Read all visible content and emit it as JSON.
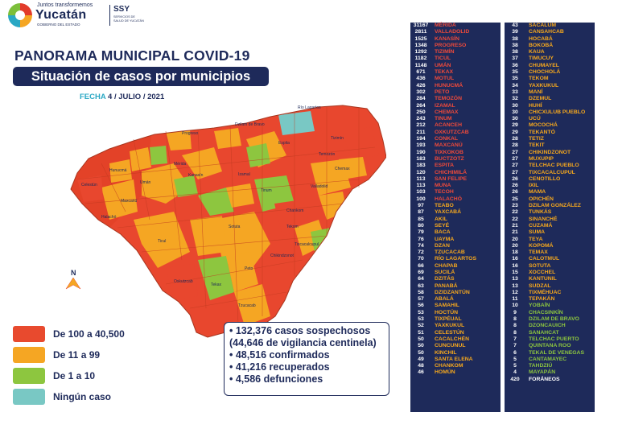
{
  "header": {
    "logo_top": "Juntos transformemos",
    "logo_name": "Yucatán",
    "logo_bottom": "GOBIERNO DEL ESTADO",
    "ssy": "SSY",
    "ssy_sub": "SERVICIOS DE SALUD DE YUCATÁN"
  },
  "title": "PANORAMA MUNICIPAL COVID-19",
  "subtitle": "Situación de casos por municipios",
  "date_label": "FECHA",
  "date_value": "4 / JULIO / 2021",
  "map_labels": {
    "rio_lagartos": "Río Lagartos",
    "dzilam_bravo": "Dzilam de Bravo",
    "progreso": "Progreso",
    "tizimin": "Tizimín",
    "merida": "Mérida",
    "valladolid": "Valladolid",
    "tekax": "Tekax",
    "ticul": "Ticul",
    "peto": "Peto",
    "tzucacab": "Tzucacab",
    "oxkutzcab": "Oxkutzcab",
    "chemax": "Chemax",
    "espita": "Espita",
    "celestun": "Celestún",
    "halachó": "Halachó",
    "maxcanu": "Maxcanú",
    "tinum": "Tinum",
    "sotuta": "Sotuta",
    "tekom": "Tekom",
    "tixcacalcupul": "Tixcacalcupul",
    "chikindzonot": "Chikindzonot",
    "hunucma": "Hunucmá",
    "uman": "Umán",
    "izamal": "Izamal",
    "temozon": "Temozón",
    "kanasin": "Kanasín",
    "chankom": "Chankom"
  },
  "north_label": "N",
  "legend": [
    {
      "label": "De 100 a 40,500",
      "color": "#e84a2e"
    },
    {
      "label": "De 11 a 99",
      "color": "#f5a623"
    },
    {
      "label": "De 1 a 10",
      "color": "#8dc63f"
    },
    {
      "label": "Ningún caso",
      "color": "#79c8c4"
    }
  ],
  "stats": [
    "• 132,376 casos sospechosos",
    "(44,646 de vigilancia centinela)",
    "• 48,516 confirmados",
    "• 41,216 recuperados",
    "• 4,586 defunciones"
  ],
  "table_left": [
    {
      "n": "31167",
      "m": "MÉRIDA",
      "c": "red"
    },
    {
      "n": "2811",
      "m": "VALLADOLID",
      "c": "red"
    },
    {
      "n": "1525",
      "m": "KANASÍN",
      "c": "red"
    },
    {
      "n": "1348",
      "m": "PROGRESO",
      "c": "red"
    },
    {
      "n": "1292",
      "m": "TIZIMÍN",
      "c": "red"
    },
    {
      "n": "1182",
      "m": "TICUL",
      "c": "red"
    },
    {
      "n": "1148",
      "m": "UMÁN",
      "c": "red"
    },
    {
      "n": "671",
      "m": "TEKAX",
      "c": "red"
    },
    {
      "n": "436",
      "m": "MOTUL",
      "c": "red"
    },
    {
      "n": "426",
      "m": "HUNUCMÁ",
      "c": "red"
    },
    {
      "n": "302",
      "m": "PETO",
      "c": "red"
    },
    {
      "n": "284",
      "m": "TEMOZÓN",
      "c": "red"
    },
    {
      "n": "264",
      "m": "IZAMAL",
      "c": "red"
    },
    {
      "n": "250",
      "m": "CHEMAX",
      "c": "red"
    },
    {
      "n": "243",
      "m": "TINUM",
      "c": "red"
    },
    {
      "n": "212",
      "m": "ACANCEH",
      "c": "red"
    },
    {
      "n": "211",
      "m": "OXKUTZCAB",
      "c": "red"
    },
    {
      "n": "194",
      "m": "CONKAL",
      "c": "red"
    },
    {
      "n": "193",
      "m": "MAXCANÚ",
      "c": "red"
    },
    {
      "n": "190",
      "m": "TIXKOKOB",
      "c": "red"
    },
    {
      "n": "183",
      "m": "BUCTZOTZ",
      "c": "red"
    },
    {
      "n": "183",
      "m": "ESPITA",
      "c": "red"
    },
    {
      "n": "120",
      "m": "CHICHIMILÁ",
      "c": "red"
    },
    {
      "n": "113",
      "m": "SAN FELIPE",
      "c": "red"
    },
    {
      "n": "113",
      "m": "MUNA",
      "c": "red"
    },
    {
      "n": "103",
      "m": "TECOH",
      "c": "red"
    },
    {
      "n": "100",
      "m": "HALACHÓ",
      "c": "red"
    },
    {
      "n": "97",
      "m": "TEABO",
      "c": "org"
    },
    {
      "n": "87",
      "m": "YAXCABÁ",
      "c": "org"
    },
    {
      "n": "85",
      "m": "AKIL",
      "c": "org"
    },
    {
      "n": "80",
      "m": "SEYÉ",
      "c": "org"
    },
    {
      "n": "79",
      "m": "BACA",
      "c": "org"
    },
    {
      "n": "76",
      "m": "UAYMA",
      "c": "org"
    },
    {
      "n": "74",
      "m": "DZAN",
      "c": "org"
    },
    {
      "n": "72",
      "m": "TZUCACAB",
      "c": "org"
    },
    {
      "n": "70",
      "m": "RÍO LAGARTOS",
      "c": "org"
    },
    {
      "n": "66",
      "m": "CHAPAB",
      "c": "org"
    },
    {
      "n": "69",
      "m": "SUCILÁ",
      "c": "org"
    },
    {
      "n": "64",
      "m": "DZITÁS",
      "c": "org"
    },
    {
      "n": "63",
      "m": "PANABÁ",
      "c": "org"
    },
    {
      "n": "58",
      "m": "DZIDZANTÚN",
      "c": "org"
    },
    {
      "n": "57",
      "m": "ABALÁ",
      "c": "org"
    },
    {
      "n": "56",
      "m": "SAMAHIL",
      "c": "org"
    },
    {
      "n": "53",
      "m": "HOCTÚN",
      "c": "org"
    },
    {
      "n": "53",
      "m": "TIXPÉUAL",
      "c": "org"
    },
    {
      "n": "52",
      "m": "YAXKUKUL",
      "c": "org"
    },
    {
      "n": "51",
      "m": "CELESTÚN",
      "c": "org"
    },
    {
      "n": "50",
      "m": "CACALCHÉN",
      "c": "org"
    },
    {
      "n": "50",
      "m": "CUNCUNUL",
      "c": "org"
    },
    {
      "n": "50",
      "m": "KINCHIL",
      "c": "org"
    },
    {
      "n": "49",
      "m": "SANTA ELENA",
      "c": "org"
    },
    {
      "n": "48",
      "m": "CHANKOM",
      "c": "org"
    },
    {
      "n": "46",
      "m": "HOMÚN",
      "c": "org"
    }
  ],
  "table_right": [
    {
      "n": "43",
      "m": "SACALUM",
      "c": "org"
    },
    {
      "n": "39",
      "m": "CANSAHCAB",
      "c": "org"
    },
    {
      "n": "38",
      "m": "HOCABÁ",
      "c": "org"
    },
    {
      "n": "38",
      "m": "BOKOBÁ",
      "c": "org"
    },
    {
      "n": "38",
      "m": "KAUA",
      "c": "org"
    },
    {
      "n": "37",
      "m": "TIMUCUY",
      "c": "org"
    },
    {
      "n": "36",
      "m": "CHUMAYEL",
      "c": "org"
    },
    {
      "n": "35",
      "m": "CHOCHOLÁ",
      "c": "org"
    },
    {
      "n": "35",
      "m": "TEKOM",
      "c": "org"
    },
    {
      "n": "34",
      "m": "YAXKUKUL",
      "c": "org"
    },
    {
      "n": "33",
      "m": "MANÍ",
      "c": "org"
    },
    {
      "n": "32",
      "m": "DZEMUL",
      "c": "org"
    },
    {
      "n": "30",
      "m": "HUHÍ",
      "c": "org"
    },
    {
      "n": "30",
      "m": "CHICXULUB PUEBLO",
      "c": "org"
    },
    {
      "n": "30",
      "m": "UCÚ",
      "c": "org"
    },
    {
      "n": "29",
      "m": "MOCOCHÁ",
      "c": "org"
    },
    {
      "n": "29",
      "m": "TEKANTÓ",
      "c": "org"
    },
    {
      "n": "28",
      "m": "TETIZ",
      "c": "org"
    },
    {
      "n": "28",
      "m": "TEKIT",
      "c": "org"
    },
    {
      "n": "27",
      "m": "CHIKINDZONOT",
      "c": "org"
    },
    {
      "n": "27",
      "m": "MUXUPIP",
      "c": "org"
    },
    {
      "n": "27",
      "m": "TELCHAC PUEBLO",
      "c": "org"
    },
    {
      "n": "27",
      "m": "TIXCACALCUPUL",
      "c": "org"
    },
    {
      "n": "26",
      "m": "CENOTILLO",
      "c": "org"
    },
    {
      "n": "26",
      "m": "IXIL",
      "c": "org"
    },
    {
      "n": "26",
      "m": "MAMA",
      "c": "org"
    },
    {
      "n": "25",
      "m": "OPICHÉN",
      "c": "org"
    },
    {
      "n": "23",
      "m": "DZILAM GONZÁLEZ",
      "c": "org"
    },
    {
      "n": "22",
      "m": "TUNKÁS",
      "c": "org"
    },
    {
      "n": "22",
      "m": "SINANCHÉ",
      "c": "org"
    },
    {
      "n": "21",
      "m": "CUZAMÁ",
      "c": "org"
    },
    {
      "n": "21",
      "m": "SUMA",
      "c": "org"
    },
    {
      "n": "20",
      "m": "TEYA",
      "c": "org"
    },
    {
      "n": "20",
      "m": "KOPOMÁ",
      "c": "org"
    },
    {
      "n": "18",
      "m": "TEMAX",
      "c": "org"
    },
    {
      "n": "16",
      "m": "CALOTMUL",
      "c": "org"
    },
    {
      "n": "16",
      "m": "SOTUTA",
      "c": "org"
    },
    {
      "n": "15",
      "m": "XOCCHEL",
      "c": "org"
    },
    {
      "n": "13",
      "m": "KANTUNIL",
      "c": "org"
    },
    {
      "n": "13",
      "m": "SUDZAL",
      "c": "org"
    },
    {
      "n": "12",
      "m": "TIXMÉHUAC",
      "c": "org"
    },
    {
      "n": "11",
      "m": "TEPAKÁN",
      "c": "org"
    },
    {
      "n": "10",
      "m": "YOBAÍN",
      "c": "grn"
    },
    {
      "n": "9",
      "m": "CHACSINKÍN",
      "c": "grn"
    },
    {
      "n": "8",
      "m": "DZILAM DE BRAVO",
      "c": "grn"
    },
    {
      "n": "8",
      "m": "DZONCAUICH",
      "c": "grn"
    },
    {
      "n": "8",
      "m": "SANAHCAT",
      "c": "grn"
    },
    {
      "n": "7",
      "m": "TELCHAC PUERTO",
      "c": "grn"
    },
    {
      "n": "7",
      "m": "QUINTANA ROO",
      "c": "grn"
    },
    {
      "n": "6",
      "m": "TEKAL DE VENEGAS",
      "c": "grn"
    },
    {
      "n": "5",
      "m": "CANTAMAYEC",
      "c": "grn"
    },
    {
      "n": "5",
      "m": "TAHDZIÚ",
      "c": "grn"
    },
    {
      "n": "4",
      "m": "MAYAPÁN",
      "c": "grn"
    },
    {
      "n": "420",
      "m": "FORÁNEOS",
      "c": "wht"
    }
  ],
  "colors": {
    "navy": "#1e2a5a",
    "red": "#e84a2e",
    "orange": "#f5a623",
    "green": "#8dc63f",
    "teal": "#79c8c4"
  }
}
